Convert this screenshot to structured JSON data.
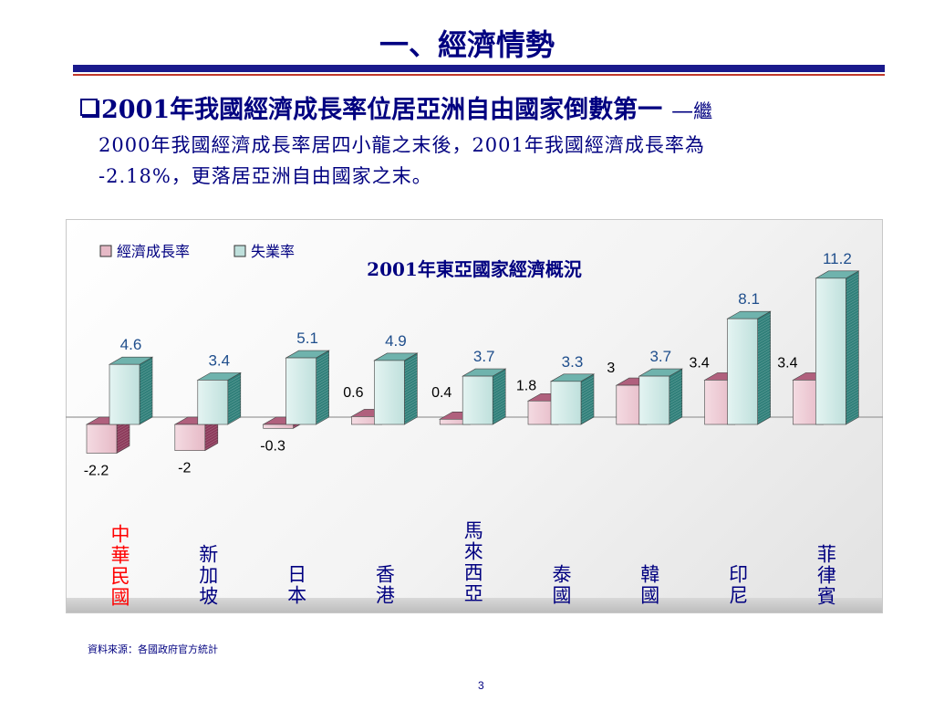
{
  "slide": {
    "title": "一、經濟情勢",
    "bullet_bold": "2001年我國經濟成長率位居亞洲自由國家倒數第一",
    "bullet_dash": "—",
    "bullet_rest": "繼",
    "para_line2": "2000年我國經濟成長率居四小龍之末後，2001年我國經濟成長率為",
    "para_line3": "-2.18%，更落居亞洲自由國家之末。",
    "source": "資料來源：各國政府官方統計",
    "page_number": "3"
  },
  "chart_data": {
    "type": "bar",
    "title": "2001年東亞國家經濟概況",
    "legend_position": "top-left",
    "categories": [
      "中華民國",
      "新加坡",
      "日本",
      "香港",
      "馬來西亞",
      "泰國",
      "韓國",
      "印尼",
      "菲律賓"
    ],
    "highlight_category": "中華民國",
    "series": [
      {
        "name": "經濟成長率",
        "values": [
          -2.2,
          -2,
          -0.3,
          0.6,
          0.4,
          1.8,
          3,
          3.4,
          3.4
        ]
      },
      {
        "name": "失業率",
        "values": [
          4.6,
          3.4,
          5.1,
          4.9,
          3.7,
          3.3,
          3.7,
          8.1,
          11.2
        ]
      }
    ],
    "value_labels": {
      "經濟成長率": [
        "-2.2",
        "-2",
        "-0.3",
        "0.6",
        "0.4",
        "1.8",
        "3",
        "3.4",
        "3.4"
      ],
      "失業率": [
        "4.6",
        "3.4",
        "5.1",
        "4.9",
        "3.7",
        "3.3",
        "3.7",
        "8.1",
        "11.2"
      ]
    },
    "colors": {
      "growth_front": "#e6b9c6",
      "growth_side": "#8c3a5a",
      "unemployment_front": "#bfe0dc",
      "unemployment_side": "#2f7f79",
      "label_dark": "#000000",
      "label_blue": "#1f4e8c",
      "title": "#000080",
      "category_highlight": "#ff0000",
      "category": "#000080"
    },
    "grid": false
  }
}
